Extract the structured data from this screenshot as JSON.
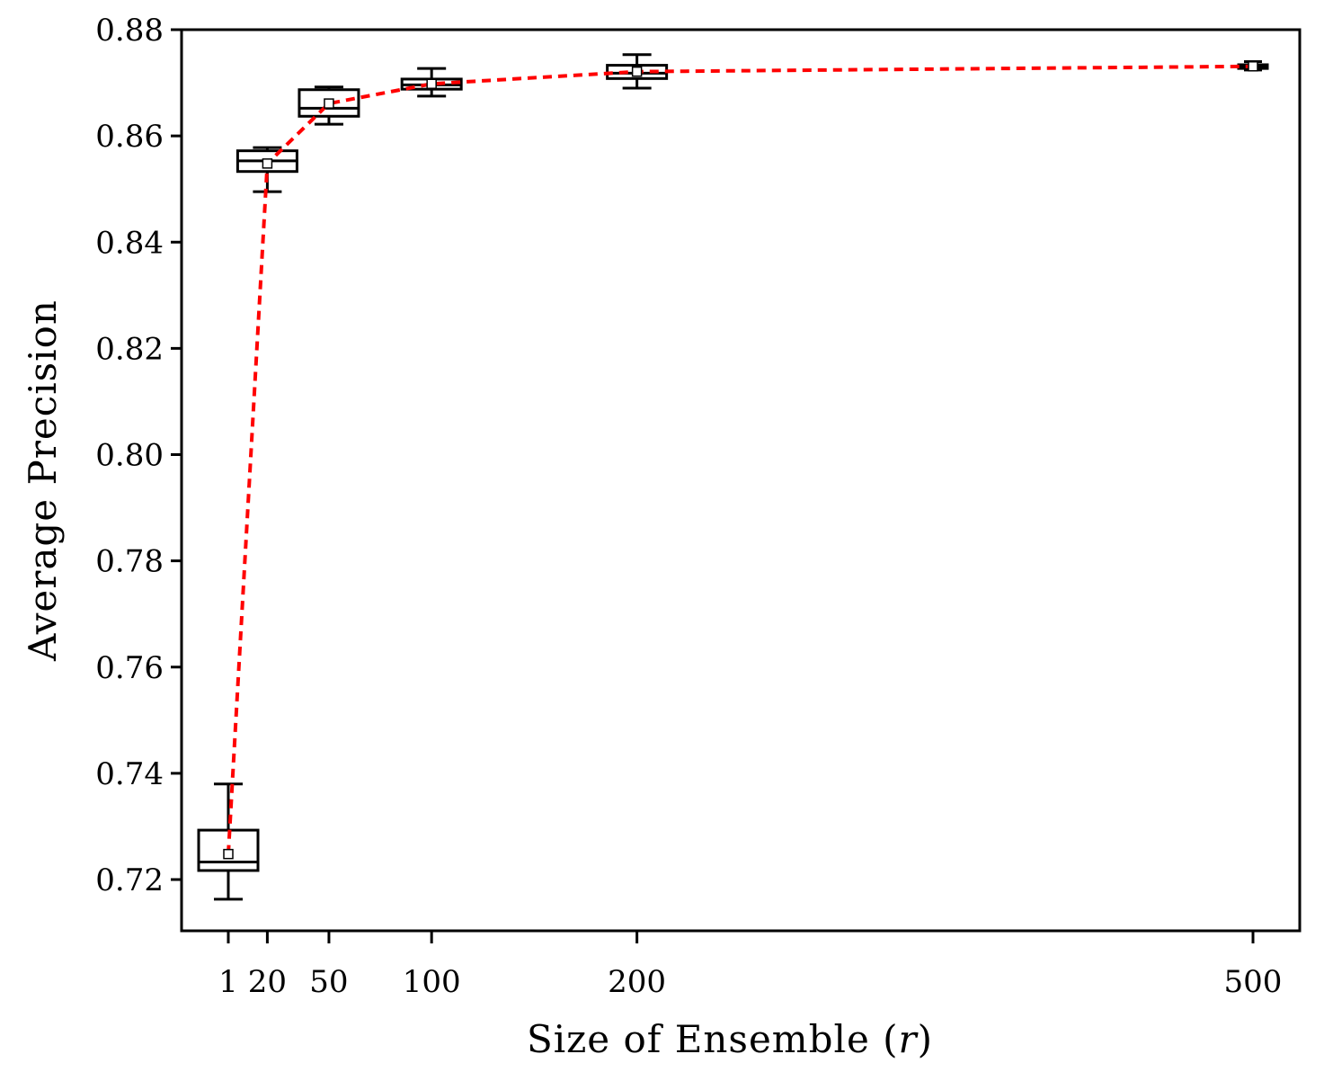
{
  "chart_data": {
    "type": "box",
    "xlabel_prefix": "Size of Ensemble (",
    "xlabel_var": "r",
    "xlabel_suffix": ")",
    "ylabel": "Average Precision",
    "x_ticks": [
      1,
      20,
      50,
      100,
      200,
      500
    ],
    "x_tick_labels": [
      "1",
      "20",
      "50",
      "100",
      "200",
      "500"
    ],
    "y_ticks": [
      0.72,
      0.74,
      0.76,
      0.78,
      0.8,
      0.82,
      0.84,
      0.86,
      0.88
    ],
    "y_tick_labels": [
      "0.72",
      "0.74",
      "0.76",
      "0.78",
      "0.80",
      "0.82",
      "0.84",
      "0.86",
      "0.88"
    ],
    "ylim": [
      0.711,
      0.88
    ],
    "grid": false,
    "boxes": [
      {
        "x": 1,
        "whisker_low": 0.7163,
        "q1": 0.7217,
        "median": 0.7233,
        "q3": 0.7293,
        "whisker_high": 0.738,
        "mean": 0.7248
      },
      {
        "x": 20,
        "whisker_low": 0.8495,
        "q1": 0.8533,
        "median": 0.8553,
        "q3": 0.8572,
        "whisker_high": 0.8578,
        "mean": 0.8548
      },
      {
        "x": 50,
        "whisker_low": 0.8622,
        "q1": 0.8637,
        "median": 0.8652,
        "q3": 0.8687,
        "whisker_high": 0.8692,
        "mean": 0.8661
      },
      {
        "x": 100,
        "whisker_low": 0.8675,
        "q1": 0.8688,
        "median": 0.8696,
        "q3": 0.8707,
        "whisker_high": 0.8727,
        "mean": 0.8698
      },
      {
        "x": 200,
        "whisker_low": 0.869,
        "q1": 0.8708,
        "median": 0.8718,
        "q3": 0.8733,
        "whisker_high": 0.8753,
        "mean": 0.8721
      },
      {
        "x": 500,
        "whisker_low": 0.8724,
        "q1": 0.8727,
        "median": 0.873,
        "q3": 0.8734,
        "whisker_high": 0.874,
        "mean": 0.8731
      }
    ],
    "mean_line": {
      "style": "dashed",
      "color": "#ff0000",
      "x": [
        1,
        20,
        50,
        100,
        200,
        500
      ],
      "y": [
        0.7248,
        0.8548,
        0.8661,
        0.8698,
        0.8721,
        0.8731
      ]
    }
  }
}
